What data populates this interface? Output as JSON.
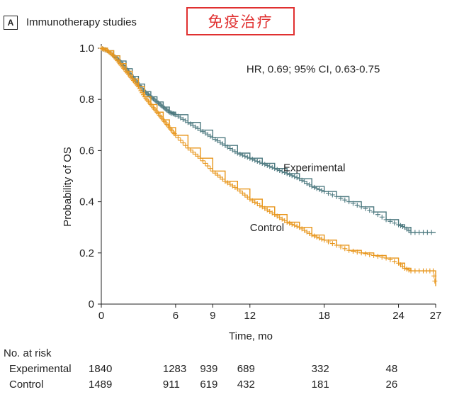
{
  "panel": {
    "letter": "A",
    "title": "Immunotherapy studies"
  },
  "banner": {
    "text": "免疫治疗",
    "color": "#e03030"
  },
  "chart_data": {
    "type": "line",
    "title": "Immunotherapy studies",
    "xlabel": "Time, mo",
    "ylabel": "Probability of OS",
    "xlim": [
      0,
      27
    ],
    "ylim": [
      0,
      1.0
    ],
    "xticks": [
      0,
      6,
      9,
      12,
      18,
      24,
      27
    ],
    "yticks": [
      0,
      0.2,
      0.4,
      0.6,
      0.8,
      1.0
    ],
    "ytick_labels": [
      "0",
      "0.2",
      "0.4",
      "0.6",
      "0.8",
      "1.0"
    ],
    "annotation": "HR, 0.69; 95% CI, 0.63-0.75",
    "series": [
      {
        "name": "Experimental",
        "color": "#4e7a80",
        "x": [
          0,
          0.5,
          1,
          1.5,
          2,
          2.5,
          3,
          3.5,
          4,
          4.5,
          5,
          5.5,
          6,
          7,
          8,
          9,
          10,
          11,
          12,
          13,
          14,
          15,
          16,
          17,
          18,
          19,
          20,
          21,
          22,
          23,
          24,
          24.5,
          25,
          26,
          27
        ],
        "y": [
          1.0,
          0.99,
          0.97,
          0.95,
          0.92,
          0.89,
          0.86,
          0.83,
          0.81,
          0.79,
          0.77,
          0.75,
          0.74,
          0.71,
          0.68,
          0.65,
          0.62,
          0.59,
          0.57,
          0.55,
          0.53,
          0.51,
          0.49,
          0.46,
          0.44,
          0.42,
          0.4,
          0.38,
          0.36,
          0.33,
          0.31,
          0.3,
          0.28,
          0.28,
          0.28
        ]
      },
      {
        "name": "Control",
        "color": "#e8961c",
        "x": [
          0,
          0.5,
          1,
          1.5,
          2,
          2.5,
          3,
          3.5,
          4,
          4.5,
          5,
          5.5,
          6,
          7,
          8,
          9,
          10,
          11,
          12,
          13,
          14,
          15,
          16,
          17,
          18,
          19,
          20,
          21,
          22,
          23,
          24,
          24.5,
          25,
          26,
          26.8,
          27
        ],
        "y": [
          1.0,
          0.99,
          0.97,
          0.94,
          0.91,
          0.88,
          0.85,
          0.81,
          0.78,
          0.75,
          0.72,
          0.69,
          0.66,
          0.61,
          0.57,
          0.52,
          0.48,
          0.45,
          0.41,
          0.38,
          0.35,
          0.32,
          0.3,
          0.27,
          0.25,
          0.23,
          0.21,
          0.2,
          0.19,
          0.18,
          0.16,
          0.14,
          0.13,
          0.13,
          0.13,
          0.07
        ]
      }
    ],
    "series_labels": [
      {
        "name": "Experimental",
        "x": 14.7,
        "y": 0.52
      },
      {
        "name": "Control",
        "x": 12.0,
        "y": 0.285
      }
    ],
    "annotation_pos": {
      "x": 22.5,
      "y": 0.905
    }
  },
  "risk_table": {
    "header": "No. at risk",
    "times": [
      0,
      6,
      9,
      12,
      18,
      24
    ],
    "rows": [
      {
        "label": "Experimental",
        "values": [
          "1840",
          "1283",
          "939",
          "689",
          "332",
          "48"
        ]
      },
      {
        "label": "Control",
        "values": [
          "1489",
          "911",
          "619",
          "432",
          "181",
          "26"
        ]
      }
    ]
  }
}
